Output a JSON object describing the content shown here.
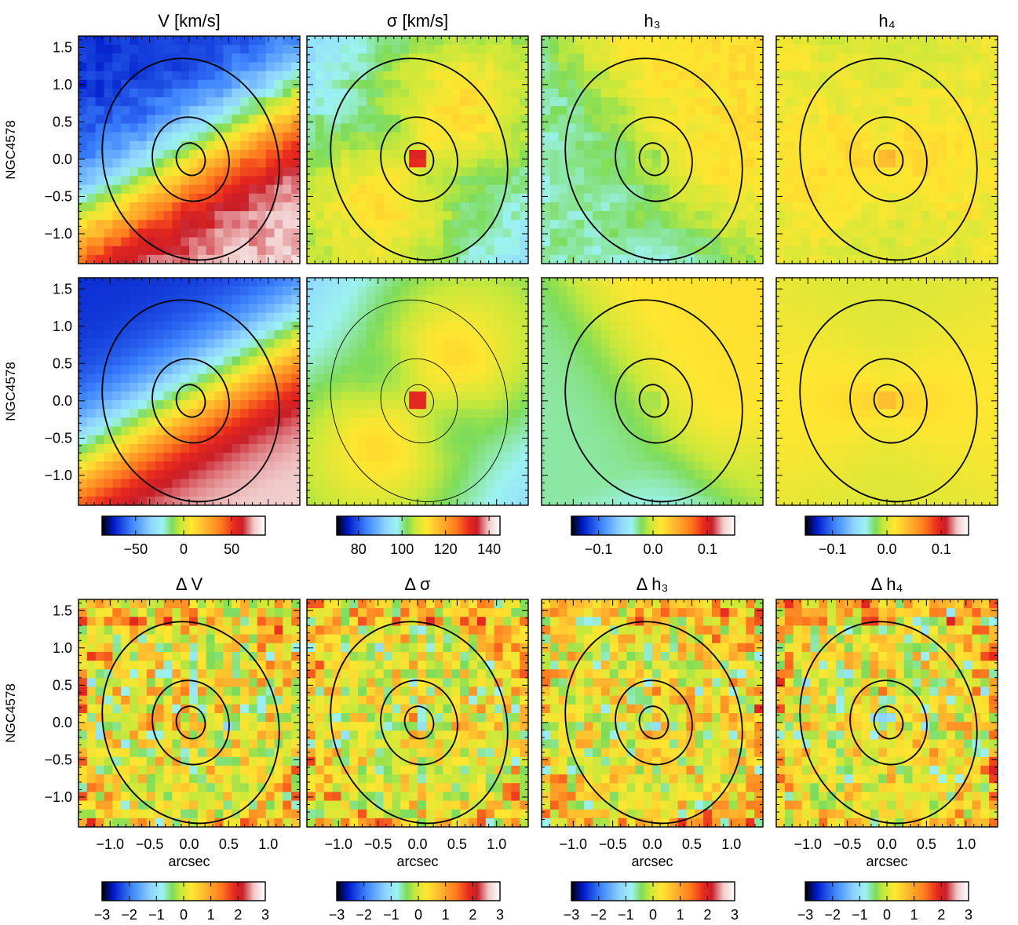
{
  "figure": {
    "galaxy_label": "NGC4578",
    "x_axis_label": "arcsec"
  },
  "chart_data": {
    "type": "heatmap",
    "grid": {
      "rows": 3,
      "cols": 4
    },
    "x_ticks": [
      "−1.0",
      "−0.5",
      "0.0",
      "0.5",
      "1.0"
    ],
    "x_tick_values": [
      -1.0,
      -0.5,
      0.0,
      0.5,
      1.0
    ],
    "y_ticks": [
      "1.5",
      "1.0",
      "0.5",
      "0.0",
      "−0.5",
      "−1.0"
    ],
    "y_tick_values": [
      1.5,
      1.0,
      0.5,
      0.0,
      -0.5,
      -1.0
    ],
    "xlim": [
      -1.4,
      1.4
    ],
    "ylim": [
      -1.4,
      1.65
    ],
    "row_labels": [
      "NGC4578",
      "NGC4578",
      "NGC4578"
    ],
    "colormap": [
      "#000000",
      "#0019c8",
      "#3c82ff",
      "#8fd4ff",
      "#9cf2f0",
      "#7ddc5a",
      "#c8e83a",
      "#ffe631",
      "#ffb22d",
      "#ff7b1e",
      "#e8281e",
      "#c81e28",
      "#f0c8c8",
      "#ffffff"
    ],
    "contour_levels": [
      "inner",
      "middle",
      "outer"
    ],
    "panels": [
      {
        "row": 0,
        "col": 0,
        "title": "V [km/s]",
        "map": "velocity",
        "kind": "data"
      },
      {
        "row": 0,
        "col": 1,
        "title": "σ [km/s]",
        "map": "dispersion",
        "kind": "data"
      },
      {
        "row": 0,
        "col": 2,
        "title": "h₃",
        "map": "h3",
        "kind": "data"
      },
      {
        "row": 0,
        "col": 3,
        "title": "h₄",
        "map": "h4",
        "kind": "data"
      },
      {
        "row": 1,
        "col": 0,
        "title": "",
        "map": "velocity",
        "kind": "model"
      },
      {
        "row": 1,
        "col": 1,
        "title": "",
        "map": "dispersion",
        "kind": "model"
      },
      {
        "row": 1,
        "col": 2,
        "title": "",
        "map": "h3",
        "kind": "model"
      },
      {
        "row": 1,
        "col": 3,
        "title": "",
        "map": "h4",
        "kind": "model"
      },
      {
        "row": 2,
        "col": 0,
        "title": "Δ V",
        "map": "residual",
        "kind": "residual"
      },
      {
        "row": 2,
        "col": 1,
        "title": "Δ σ",
        "map": "residual",
        "kind": "residual"
      },
      {
        "row": 2,
        "col": 2,
        "title": "Δ h₃",
        "map": "residual",
        "kind": "residual"
      },
      {
        "row": 2,
        "col": 3,
        "title": "Δ h₄",
        "map": "residual",
        "kind": "residual"
      }
    ],
    "colorbars": [
      {
        "group": "model",
        "col": 0,
        "range": [
          -85,
          85
        ],
        "ticks": [
          "−50",
          "0",
          "50"
        ],
        "tick_values": [
          -50,
          0,
          50
        ]
      },
      {
        "group": "model",
        "col": 1,
        "range": [
          70,
          145
        ],
        "ticks": [
          "80",
          "100",
          "120",
          "140"
        ],
        "tick_values": [
          80,
          100,
          120,
          140
        ]
      },
      {
        "group": "model",
        "col": 2,
        "range": [
          -0.15,
          0.15
        ],
        "ticks": [
          "−0.1",
          "0.0",
          "0.1"
        ],
        "tick_values": [
          -0.1,
          0.0,
          0.1
        ]
      },
      {
        "group": "model",
        "col": 3,
        "range": [
          -0.15,
          0.15
        ],
        "ticks": [
          "−0.1",
          "0.0",
          "0.1"
        ],
        "tick_values": [
          -0.1,
          0.0,
          0.1
        ]
      },
      {
        "group": "residual",
        "col": 0,
        "range": [
          -3,
          3
        ],
        "ticks": [
          "−3",
          "−2",
          "−1",
          "0",
          "1",
          "2",
          "3"
        ],
        "tick_values": [
          -3,
          -2,
          -1,
          0,
          1,
          2,
          3
        ]
      },
      {
        "group": "residual",
        "col": 1,
        "range": [
          -3,
          3
        ],
        "ticks": [
          "−3",
          "−2",
          "−1",
          "0",
          "1",
          "2",
          "3"
        ],
        "tick_values": [
          -3,
          -2,
          -1,
          0,
          1,
          2,
          3
        ]
      },
      {
        "group": "residual",
        "col": 2,
        "range": [
          -3,
          3
        ],
        "ticks": [
          "−3",
          "−2",
          "−1",
          "0",
          "1",
          "2",
          "3"
        ],
        "tick_values": [
          -3,
          -2,
          -1,
          0,
          1,
          2,
          3
        ]
      },
      {
        "group": "residual",
        "col": 3,
        "range": [
          -3,
          3
        ],
        "ticks": [
          "−3",
          "−2",
          "−1",
          "0",
          "1",
          "2",
          "3"
        ],
        "tick_values": [
          -3,
          -2,
          -1,
          0,
          1,
          2,
          3
        ]
      }
    ]
  }
}
